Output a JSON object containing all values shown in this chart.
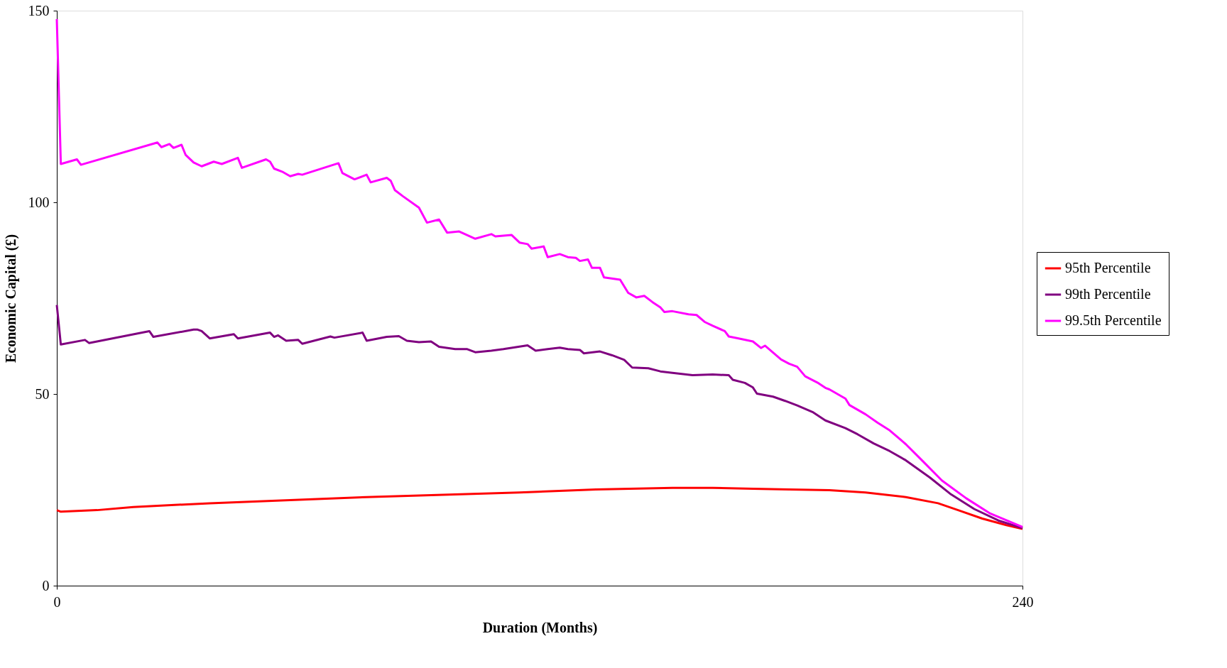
{
  "chart_data": {
    "type": "line",
    "xlabel": "Duration (Months)",
    "ylabel": "Economic Capital (£)",
    "xlim": [
      0,
      240
    ],
    "xticks": [
      0,
      240
    ],
    "ylim": [
      0,
      150
    ],
    "yticks": [
      0,
      50,
      100,
      150
    ],
    "legend": "right",
    "series": [
      {
        "name": "95th Percentile",
        "color": "#ff0000",
        "x": [
          0,
          1,
          10,
          19,
          38,
          58,
          77,
          96,
          115,
          134,
          153,
          163,
          173,
          182,
          192,
          201,
          211,
          219,
          224,
          230,
          236,
          240
        ],
        "values": [
          19.7,
          19.3,
          19.7,
          20.5,
          21.5,
          22.3,
          23.1,
          23.7,
          24.3,
          25.1,
          25.5,
          25.5,
          25.3,
          25.1,
          24.9,
          24.3,
          23.1,
          21.5,
          19.7,
          17.5,
          15.8,
          14.8
        ]
      },
      {
        "name": "99th Percentile",
        "color": "#800080",
        "x": [
          0,
          1,
          7,
          8,
          23,
          24,
          34,
          35,
          36,
          38,
          44,
          45,
          53,
          54,
          55,
          57,
          60,
          61,
          68,
          69,
          76,
          77,
          82,
          85,
          87,
          90,
          93,
          95,
          99,
          102,
          104,
          108,
          111,
          117,
          119,
          122,
          125,
          127,
          130,
          131,
          135,
          138,
          141,
          143,
          147,
          150,
          153,
          158,
          163,
          167,
          168,
          171,
          173,
          174,
          178,
          181,
          184,
          188,
          191,
          196,
          199,
          203,
          207,
          211,
          217,
          222,
          228,
          234,
          240
        ],
        "values": [
          73.2,
          62.9,
          64.1,
          63.3,
          66.4,
          64.9,
          66.8,
          66.8,
          66.4,
          64.5,
          65.6,
          64.5,
          66,
          64.9,
          65.3,
          63.9,
          64.1,
          63.1,
          65,
          64.7,
          66,
          63.9,
          64.9,
          65.1,
          63.9,
          63.5,
          63.7,
          62.3,
          61.7,
          61.7,
          60.9,
          61.3,
          61.7,
          62.7,
          61.3,
          61.7,
          62.1,
          61.7,
          61.5,
          60.6,
          61.1,
          60.1,
          58.9,
          56.9,
          56.7,
          55.9,
          55.5,
          54.9,
          55.1,
          54.9,
          53.7,
          52.9,
          51.7,
          50.1,
          49.3,
          48.2,
          47,
          45.2,
          43.1,
          41.1,
          39.5,
          37.1,
          35.1,
          32.7,
          28.2,
          24,
          20,
          17,
          15
        ]
      },
      {
        "name": "99.5th Percentile",
        "color": "#ff00ff",
        "x": [
          0,
          1,
          5,
          6,
          25,
          26,
          28,
          29,
          31,
          32,
          34,
          36,
          39,
          41,
          45,
          46,
          52,
          53,
          54,
          56,
          58,
          60,
          61,
          70,
          71,
          74,
          77,
          78,
          82,
          83,
          84,
          86,
          90,
          92,
          95,
          97,
          100,
          104,
          108,
          109,
          113,
          115,
          117,
          118,
          121,
          122,
          125,
          127,
          129,
          130,
          132,
          133,
          135,
          136,
          140,
          142,
          144,
          146,
          148,
          150,
          151,
          153,
          157,
          159,
          161,
          163,
          166,
          167,
          169,
          173,
          175,
          176,
          180,
          182,
          184,
          186,
          189,
          191,
          192,
          196,
          197,
          201,
          204,
          207,
          211,
          215,
          220,
          226,
          232,
          240
        ],
        "values": [
          147.8,
          110,
          111.2,
          109.8,
          115.6,
          114.4,
          115.2,
          114.2,
          115,
          112.4,
          110.4,
          109.4,
          110.6,
          110,
          111.6,
          109,
          111.2,
          110.6,
          108.8,
          108,
          106.8,
          107.4,
          107.2,
          110.2,
          107.6,
          106,
          107.2,
          105.2,
          106.4,
          105.6,
          103.2,
          101.6,
          98.6,
          94.7,
          95.5,
          92.1,
          92.4,
          90.5,
          91.7,
          91.1,
          91.5,
          89.5,
          89.1,
          87.9,
          88.5,
          85.7,
          86.5,
          85.7,
          85.5,
          84.7,
          85.1,
          82.9,
          82.9,
          80.4,
          79.8,
          76.4,
          75.2,
          75.6,
          74,
          72.6,
          71.4,
          71.6,
          70.8,
          70.6,
          68.8,
          67.8,
          66.4,
          65,
          64.6,
          63.7,
          62,
          62.6,
          59,
          57.9,
          57.1,
          54.6,
          53,
          51.6,
          51.2,
          48.8,
          47.1,
          44.7,
          42.5,
          40.5,
          36.9,
          32.7,
          27.4,
          22.8,
          18.8,
          15.3
        ]
      }
    ]
  }
}
